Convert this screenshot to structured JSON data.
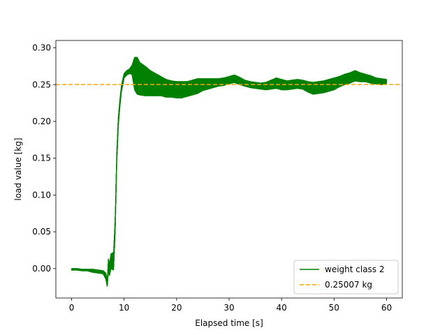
{
  "chart_data": {
    "type": "line",
    "title": "",
    "xlabel": "Elapsed time [s]",
    "ylabel": "load value [kg]",
    "xlim": [
      -3,
      63
    ],
    "ylim": [
      -0.04,
      0.31
    ],
    "xticks": [
      0,
      10,
      20,
      30,
      40,
      50,
      60
    ],
    "yticks": [
      0.0,
      0.05,
      0.1,
      0.15,
      0.2,
      0.25,
      0.3
    ],
    "xtick_labels": [
      "0",
      "10",
      "20",
      "30",
      "40",
      "50",
      "60"
    ],
    "ytick_labels": [
      "0.00",
      "0.05",
      "0.10",
      "0.15",
      "0.20",
      "0.25",
      "0.30"
    ],
    "grid": false,
    "legend": {
      "placement": "lower-right"
    },
    "series": [
      {
        "name": "weight class 2",
        "color": "#008000",
        "style": "solid",
        "x": [
          0,
          1,
          2,
          3,
          4,
          5,
          6,
          6.5,
          6.8,
          7.0,
          7.2,
          7.5,
          8.0,
          8.3,
          8.6,
          8.9,
          9.2,
          9.5,
          9.8,
          10.0,
          10.5,
          11,
          11.5,
          12,
          12.5,
          13,
          14,
          15,
          16,
          17,
          18,
          19,
          20,
          21,
          22,
          23,
          24,
          25,
          26,
          27,
          28,
          29,
          30,
          31,
          32,
          33,
          34,
          35,
          36,
          37,
          38,
          39,
          40,
          41,
          42,
          43,
          44,
          45,
          46,
          47,
          48,
          49,
          50,
          51,
          52,
          53,
          54,
          55,
          56,
          57,
          58,
          59,
          60
        ],
        "y": [
          -0.001,
          -0.001,
          -0.002,
          -0.002,
          -0.003,
          -0.004,
          -0.005,
          -0.01,
          -0.02,
          0.005,
          -0.002,
          0.01,
          0.01,
          0.06,
          0.15,
          0.2,
          0.225,
          0.245,
          0.255,
          0.262,
          0.266,
          0.268,
          0.27,
          0.265,
          0.262,
          0.258,
          0.255,
          0.252,
          0.25,
          0.248,
          0.245,
          0.244,
          0.243,
          0.243,
          0.244,
          0.246,
          0.248,
          0.25,
          0.251,
          0.252,
          0.253,
          0.254,
          0.256,
          0.258,
          0.255,
          0.252,
          0.25,
          0.249,
          0.248,
          0.248,
          0.25,
          0.252,
          0.25,
          0.249,
          0.25,
          0.251,
          0.25,
          0.247,
          0.245,
          0.246,
          0.247,
          0.249,
          0.251,
          0.254,
          0.257,
          0.259,
          0.262,
          0.26,
          0.259,
          0.257,
          0.255,
          0.254,
          0.254
        ],
        "band": [
          0.001,
          0.001,
          0.001,
          0.001,
          0.002,
          0.002,
          0.002,
          0.004,
          0.005,
          0.008,
          0.008,
          0.01,
          0.012,
          0.01,
          0.008,
          0.006,
          0.005,
          0.004,
          0.004,
          0.003,
          0.003,
          0.003,
          0.006,
          0.022,
          0.025,
          0.022,
          0.02,
          0.017,
          0.015,
          0.013,
          0.012,
          0.011,
          0.011,
          0.011,
          0.01,
          0.01,
          0.01,
          0.008,
          0.007,
          0.006,
          0.005,
          0.005,
          0.005,
          0.005,
          0.005,
          0.004,
          0.004,
          0.004,
          0.004,
          0.005,
          0.006,
          0.007,
          0.007,
          0.006,
          0.006,
          0.006,
          0.006,
          0.007,
          0.008,
          0.008,
          0.008,
          0.008,
          0.008,
          0.007,
          0.007,
          0.007,
          0.007,
          0.006,
          0.005,
          0.005,
          0.004,
          0.004,
          0.003
        ]
      },
      {
        "name": "0.25007 kg",
        "color": "#ffa500",
        "style": "dashed",
        "y": 0.25007
      }
    ]
  }
}
